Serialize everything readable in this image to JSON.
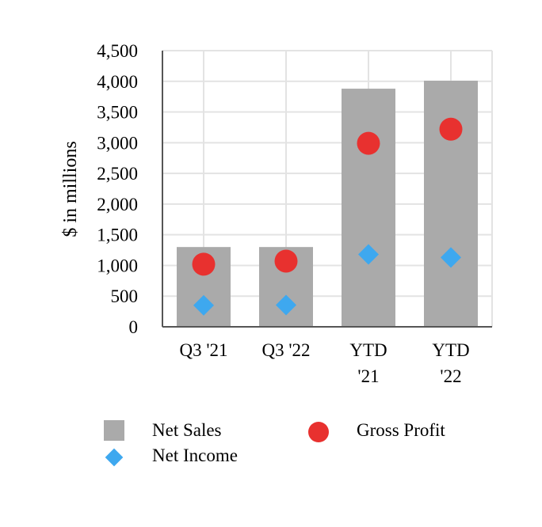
{
  "chart_data": {
    "type": "bar",
    "title": "",
    "xlabel": "",
    "ylabel": "$ in millions",
    "ylim": [
      0,
      4500
    ],
    "yticks": [
      0,
      500,
      1000,
      1500,
      2000,
      2500,
      3000,
      3500,
      4000,
      4500
    ],
    "ytick_labels": [
      "0",
      "500",
      "1,000",
      "1,500",
      "2,000",
      "2,500",
      "3,000",
      "3,500",
      "4,000",
      "4,500"
    ],
    "categories": [
      [
        "Q3 '21"
      ],
      [
        "Q3 '22"
      ],
      [
        "YTD",
        "'21"
      ],
      [
        "YTD",
        "'22"
      ]
    ],
    "grid": true,
    "legend_position": "bottom",
    "series": [
      {
        "name": "Net Sales",
        "kind": "bar",
        "marker": "square",
        "color": "#aaaaaa",
        "values": [
          1300,
          1300,
          3880,
          4010
        ]
      },
      {
        "name": "Gross Profit",
        "kind": "marker",
        "marker": "circle",
        "color": "#e8312f",
        "values": [
          1020,
          1070,
          2990,
          3220
        ]
      },
      {
        "name": "Net Income",
        "kind": "marker",
        "marker": "diamond",
        "color": "#3ea8ef",
        "values": [
          350,
          355,
          1180,
          1130
        ]
      }
    ]
  }
}
